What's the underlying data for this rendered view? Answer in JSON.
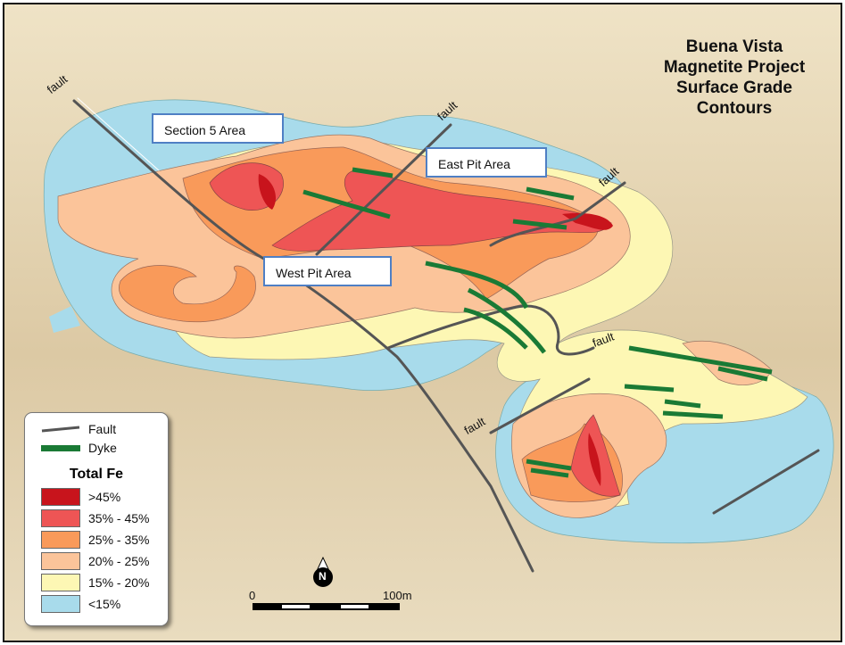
{
  "title": [
    "Buena Vista",
    "Magnetite Project",
    "Surface Grade",
    "Contours"
  ],
  "area_labels": {
    "section5": "Section 5 Area",
    "east_pit": "East Pit Area",
    "west_pit": "West Pit Area"
  },
  "fault_label": "fault",
  "legend": {
    "fault": "Fault",
    "dyke": "Dyke",
    "heading": "Total Fe",
    "grades": [
      {
        "label": ">45%",
        "color": "#c8141c"
      },
      {
        "label": "35% - 45%",
        "color": "#ee5555"
      },
      {
        "label": "25% - 35%",
        "color": "#f99a5a"
      },
      {
        "label": "20% - 25%",
        "color": "#fbc49a"
      },
      {
        "label": "15% - 20%",
        "color": "#fdf7b4"
      },
      {
        "label": "<15%",
        "color": "#a8dbeb"
      }
    ],
    "fault_color": "#555555",
    "dyke_color": "#1a7a35"
  },
  "north_arrow": "N",
  "scale": {
    "start": "0",
    "end": "100m"
  }
}
